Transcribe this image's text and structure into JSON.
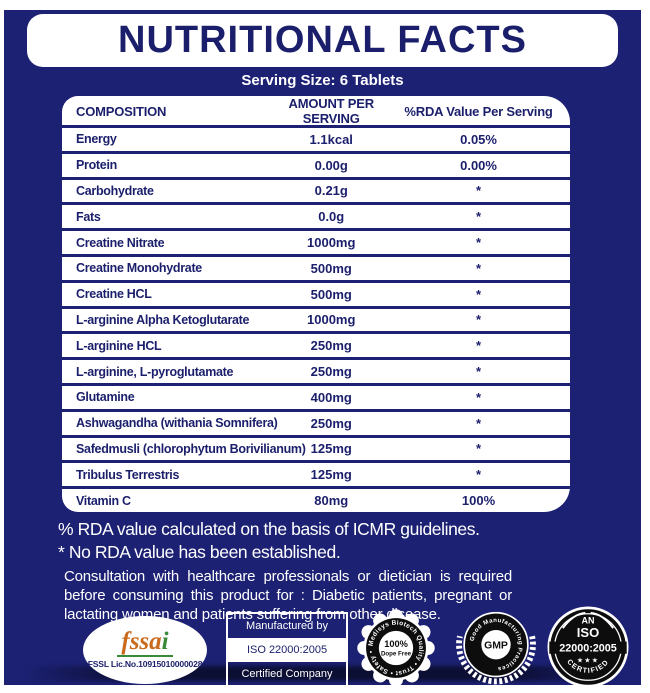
{
  "title": "NUTRITIONAL FACTS",
  "serving_size": "Serving Size: 6 Tablets",
  "table": {
    "headers": {
      "composition": "COMPOSITION",
      "amount": "AMOUNT PER SERVING",
      "rda": "%RDA Value Per Serving"
    },
    "rows": [
      {
        "name": "Energy",
        "amount": "1.1kcal",
        "rda": "0.05%"
      },
      {
        "name": "Protein",
        "amount": "0.00g",
        "rda": "0.00%"
      },
      {
        "name": "Carbohydrate",
        "amount": "0.21g",
        "rda": "*"
      },
      {
        "name": "Fats",
        "amount": "0.0g",
        "rda": "*"
      },
      {
        "name": "Creatine Nitrate",
        "amount": "1000mg",
        "rda": "*"
      },
      {
        "name": "Creatine Monohydrate",
        "amount": "500mg",
        "rda": "*"
      },
      {
        "name": "Creatine HCL",
        "amount": "500mg",
        "rda": "*"
      },
      {
        "name": "L-arginine Alpha Ketoglutarate",
        "amount": "1000mg",
        "rda": "*"
      },
      {
        "name": "L-arginine HCL",
        "amount": "250mg",
        "rda": "*"
      },
      {
        "name": "L-arginine, L-pyroglutamate",
        "amount": "250mg",
        "rda": "*"
      },
      {
        "name": "Glutamine",
        "amount": "400mg",
        "rda": "*"
      },
      {
        "name": "Ashwagandha (withania Somnifera)",
        "amount": "250mg",
        "rda": "*"
      },
      {
        "name": "Safedmusli (chlorophytum Borivilianum)",
        "amount": "125mg",
        "rda": "*"
      },
      {
        "name": "Tribulus Terrestris",
        "amount": "125mg",
        "rda": "*"
      },
      {
        "name": "Vitamin C",
        "amount": "80mg",
        "rda": "100%"
      }
    ]
  },
  "notes": {
    "rda_note": "% RDA value calculated on the basis of ICMR guidelines.",
    "asterisk_note": "* No RDA value has been established.",
    "consultation_note": "Consultation with healthcare professionals or dietician is required before consuming this product for : Diabetic patients, pregnant or lactating women and patients suffering from other disease."
  },
  "badges": {
    "fssai": {
      "logo_part1": "fssa",
      "logo_part2": "i",
      "license": "FSSL Lic.No.10915010000028"
    },
    "manufactured": {
      "line1": "Manufactured by",
      "line2": "ISO 22000:2005",
      "line3": "Certified Company"
    },
    "dope_free": {
      "ring_text": "Medisys Biotech Quality • Trust • Safety •",
      "center_line1": "100%",
      "center_line2": "Dope Free"
    },
    "gmp": {
      "ring_text": "Good Manufacturing Practices",
      "center": "GMP"
    },
    "iso": {
      "line1": "AN",
      "line2": "ISO",
      "line3": "22000:2005",
      "stars": "★★★",
      "bottom": "CERTIFIED"
    }
  },
  "colors": {
    "navy_background": "#1c2173",
    "navy_text": "#1b1f6b",
    "white": "#ffffff",
    "fssai_orange": "#c96a1c",
    "fssai_green": "#3a8a3a",
    "seal_black": "#0d0d0d"
  }
}
